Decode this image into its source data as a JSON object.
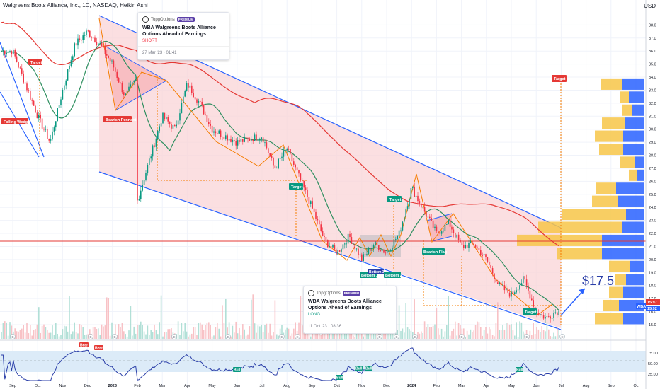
{
  "header": {
    "symbol_line": "Walgreens Boots Alliance, Inc., 1D, NASDAQ, Heikin Ashi",
    "currency": "USD"
  },
  "ideas": [
    {
      "brand": "TopgOptions",
      "badge": "PREMIUM",
      "title": "WBA Walgreens Boots Alliance Options Ahead of Earnings",
      "side": "SHORT",
      "side_color": "#f23645",
      "date": "27 Mar '23 · 01:41"
    },
    {
      "brand": "TopgOptions",
      "badge": "PREMIUM",
      "title": "WBA Walgreens Boots Alliance Options Ahead of Earnings",
      "side": "LONG",
      "side_color": "#089981",
      "date": "11 Oct '23 · 08:36"
    }
  ],
  "annotations": {
    "falling_wedge": "Falling Wedge",
    "bearish_pennant": "Bearish Pennant",
    "bearish_flag": "Bearish Flag",
    "bottom1": "Bottom 1",
    "bottom2": "Bottom 2",
    "bottom3": "Bottom 3",
    "target": "Target",
    "projection": "$17.5",
    "bear": "Bear",
    "bull": "Bull",
    "rsi_marker": "R",
    "price_tag_symbol": "WBA",
    "price_tag_a": "15.97",
    "price_tag_b": "15.92"
  },
  "colors": {
    "up": "#089981",
    "down": "#f23645",
    "channel": "#2962ff",
    "channel_fill": "#fad4d7",
    "ma_short": "#2f8f60",
    "ma_long": "#e53935",
    "pattern_line": "#f57c00",
    "volume_profile_up": "#f7c548",
    "volume_profile_down": "#2962ff",
    "rsi_line": "#2a3ea8",
    "rsi_band": "#dcebf8"
  },
  "chart_data": {
    "type": "candlestick",
    "instrument": "Walgreens Boots Alliance, Inc.",
    "exchange": "NASDAQ",
    "timeframe": "1D",
    "candle_style": "Heikin Ashi",
    "x_ticks": [
      "Sep",
      "Oct",
      "Nov",
      "Dec",
      "2023",
      "Feb",
      "Mar",
      "Apr",
      "May",
      "Jun",
      "Jul",
      "Aug",
      "Sep",
      "Oct",
      "Nov",
      "Dec",
      "2024",
      "Feb",
      "Mar",
      "Apr",
      "May",
      "Jun",
      "Jul",
      "Aug",
      "Sep",
      "Oc"
    ],
    "y_ticks": [
      15.0,
      16.0,
      17.0,
      18.0,
      19.0,
      20.0,
      21.0,
      22.0,
      23.0,
      24.0,
      25.0,
      26.0,
      27.0,
      28.0,
      29.0,
      30.0,
      31.0,
      32.0,
      33.0,
      34.0,
      35.0,
      36.0,
      37.0,
      38.0
    ],
    "ylim": [
      14.4,
      38.4
    ],
    "price_path": {
      "x": [
        "Sep",
        "Oct",
        "Oct",
        "Nov",
        "Nov",
        "Dec",
        "Dec",
        "Jan",
        "Jan",
        "Feb",
        "Mar",
        "Mar",
        "Apr",
        "Apr",
        "May",
        "Jun",
        "Jul",
        "Jul",
        "Aug",
        "Sep",
        "Sep",
        "Oct",
        "Oct",
        "Nov",
        "Nov",
        "Dec",
        "Dec",
        "2024",
        "Jan",
        "Feb",
        "Feb",
        "Mar",
        "Mar",
        "Apr",
        "Apr",
        "May",
        "May",
        "Jun",
        "Jun",
        "Jun"
      ],
      "close": [
        36.0,
        31.0,
        29.0,
        33.0,
        36.5,
        37.5,
        36.5,
        35.0,
        32.5,
        34.0,
        31.0,
        30.0,
        33.5,
        32.0,
        30.0,
        29.0,
        29.5,
        27.0,
        28.5,
        24.0,
        21.5,
        20.5,
        21.8,
        20.0,
        21.2,
        20.5,
        22.0,
        25.5,
        24.5,
        22.0,
        22.8,
        21.0,
        21.2,
        20.0,
        18.0,
        17.3,
        18.5,
        16.0,
        15.5,
        16.0
      ]
    },
    "indicators": {
      "rsi": {
        "ylim": [
          0,
          100
        ],
        "ticks": [
          25.0,
          50.0,
          75.0
        ],
        "band": [
          30,
          70
        ]
      },
      "volume_profile_levels": [
        15.0,
        16.0,
        17.0,
        18.0,
        19.0,
        20.0,
        21.0,
        22.0,
        23.0,
        24.0,
        25.0,
        26.0,
        27.0,
        28.0,
        29.0,
        30.0,
        31.0,
        32.0,
        33.0
      ]
    },
    "last_prices": [
      15.97,
      15.92
    ],
    "projection_target": 17.5
  }
}
